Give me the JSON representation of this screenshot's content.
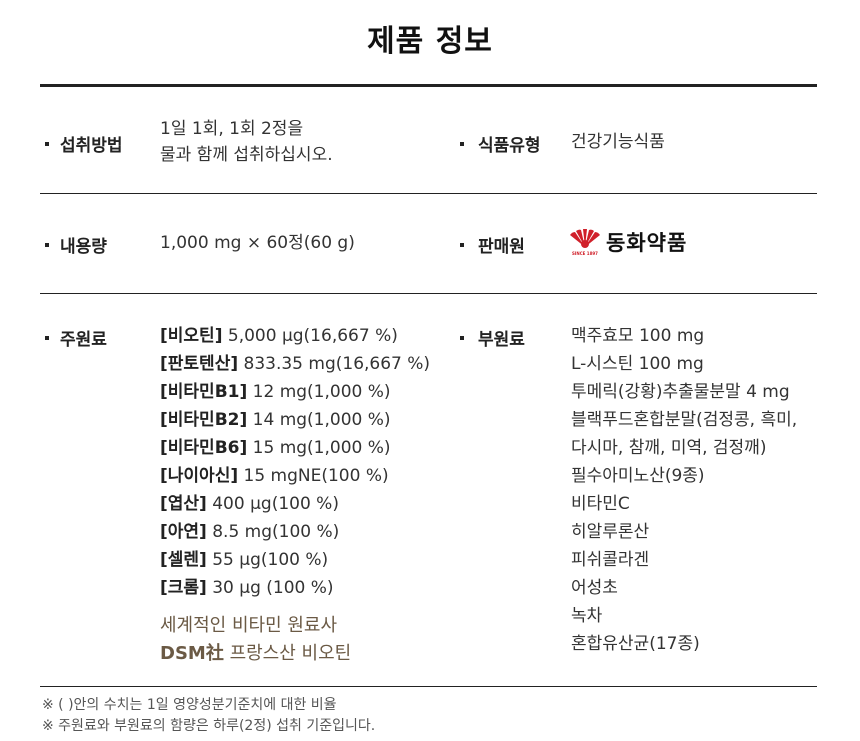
{
  "title": "제품 정보",
  "rows": [
    {
      "left": {
        "label": "섭취방법",
        "lines": [
          "1일 1회, 1회 2정을",
          "물과 함께 섭취하십시오."
        ]
      },
      "right": {
        "label": "식품유형",
        "value": "건강기능식품"
      }
    },
    {
      "left": {
        "label": "내용량",
        "value": "1,000 mg × 60정(60 g)"
      },
      "right": {
        "label": "판매원",
        "logo": {
          "name": "동화약품",
          "since": "SINCE 1897",
          "color": "#d0202a"
        }
      }
    },
    {
      "left": {
        "label": "주원료",
        "items": [
          {
            "name": "[비오틴]",
            "amount": "5,000 µg(16,667 %)"
          },
          {
            "name": "[판토텐산]",
            "amount": "833.35 mg(16,667 %)"
          },
          {
            "name": "[비타민B1]",
            "amount": "12 mg(1,000 %)"
          },
          {
            "name": "[비타민B2]",
            "amount": "14 mg(1,000 %)"
          },
          {
            "name": "[비타민B6]",
            "amount": "15 mg(1,000 %)"
          },
          {
            "name": "[나이아신]",
            "amount": "15 mgNE(100 %)"
          },
          {
            "name": "[엽산]",
            "amount": "400 µg(100 %)"
          },
          {
            "name": "[아연]",
            "amount": "8.5 mg(100 %)"
          },
          {
            "name": "[셀렌]",
            "amount": "55 µg(100 %)"
          },
          {
            "name": "[크롬]",
            "amount": "30 µg (100 %)"
          }
        ],
        "highlight": {
          "line1": "세계적인 비타민 원료사",
          "line2_bold": "DSM社",
          "line2": "프랑스산 비오틴",
          "color": "#6b5a45"
        }
      },
      "right": {
        "label": "부원료",
        "items": [
          "맥주효모 100 mg",
          "L-시스틴 100 mg",
          "투메릭(강황)추출물분말 4 mg",
          "블랙푸드혼합분말(검정콩, 흑미,",
          "다시마, 참깨, 미역, 검정깨)",
          "필수아미노산(9종)",
          "비타민C",
          "히알루론산",
          "피쉬콜라겐",
          "어성초",
          "녹차",
          "혼합유산균(17종)"
        ]
      }
    }
  ],
  "notes": [
    "※ ( )안의 수치는 1일 영양성분기준치에 대한 비율",
    "※ 주원료와 부원료의 함량은 하루(2정) 섭취 기준입니다."
  ]
}
